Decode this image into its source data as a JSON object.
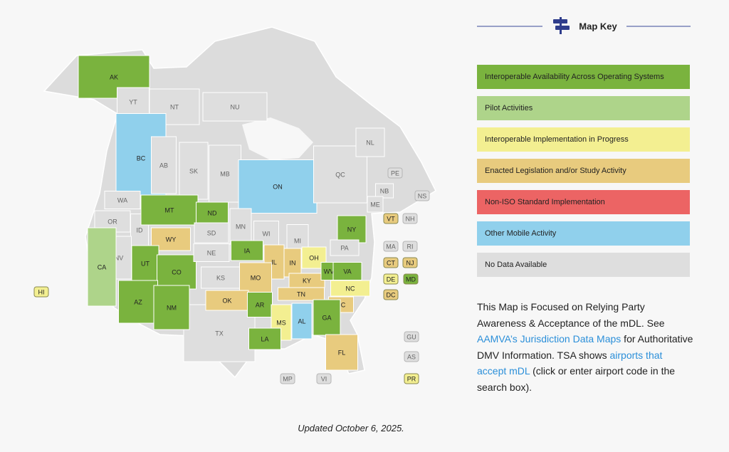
{
  "map_key": {
    "title": "Map Key",
    "items": [
      {
        "label": "Interoperable Availability Across Operating Systems",
        "color": "#7ab33e"
      },
      {
        "label": "Pilot Activities",
        "color": "#aed48a"
      },
      {
        "label": "Interoperable Implementation in Progress",
        "color": "#f3ef91"
      },
      {
        "label": "Enacted Legislation and/or Study Activity",
        "color": "#e8cb7e"
      },
      {
        "label": "Non-ISO Standard Implementation",
        "color": "#ec6464"
      },
      {
        "label": "Other Mobile Activity",
        "color": "#90d0ec"
      },
      {
        "label": "No Data Available",
        "color": "#dedede"
      }
    ]
  },
  "paragraph": [
    "This Map is Focused on Relying Party Awareness & Acceptance of the mDL. See ",
    "AAMVA’s Jurisdiction Data Maps",
    " for Authoritative DMV Information. TSA shows ",
    "airports that accept mDL",
    " (click or enter airport code in the search box)."
  ],
  "footer": "Updated October 6, 2025.",
  "regions": [
    {
      "code": "AK",
      "color": "#7ab33e"
    },
    {
      "code": "YT",
      "color": "#dedede"
    },
    {
      "code": "NT",
      "color": "#dedede"
    },
    {
      "code": "NU",
      "color": "#dedede"
    },
    {
      "code": "BC",
      "color": "#90d0ec"
    },
    {
      "code": "AB",
      "color": "#dedede"
    },
    {
      "code": "SK",
      "color": "#dedede"
    },
    {
      "code": "MB",
      "color": "#dedede"
    },
    {
      "code": "ON",
      "color": "#90d0ec"
    },
    {
      "code": "QC",
      "color": "#dedede"
    },
    {
      "code": "NL",
      "color": "#dedede"
    },
    {
      "code": "PE",
      "color": "#dedede"
    },
    {
      "code": "NS",
      "color": "#dedede"
    },
    {
      "code": "NB",
      "color": "#dedede"
    },
    {
      "code": "ME",
      "color": "#dedede"
    },
    {
      "code": "VT",
      "color": "#e8cb7e"
    },
    {
      "code": "NH",
      "color": "#dedede"
    },
    {
      "code": "WA",
      "color": "#dedede"
    },
    {
      "code": "OR",
      "color": "#dedede"
    },
    {
      "code": "ID",
      "color": "#dedede"
    },
    {
      "code": "MT",
      "color": "#7ab33e"
    },
    {
      "code": "ND",
      "color": "#7ab33e"
    },
    {
      "code": "WY",
      "color": "#e8cb7e"
    },
    {
      "code": "SD",
      "color": "#dedede"
    },
    {
      "code": "MN",
      "color": "#dedede"
    },
    {
      "code": "WI",
      "color": "#dedede"
    },
    {
      "code": "MI",
      "color": "#dedede"
    },
    {
      "code": "NY",
      "color": "#7ab33e"
    },
    {
      "code": "PA",
      "color": "#dedede"
    },
    {
      "code": "MA",
      "color": "#dedede"
    },
    {
      "code": "RI",
      "color": "#dedede"
    },
    {
      "code": "CT",
      "color": "#e8cb7e"
    },
    {
      "code": "NJ",
      "color": "#e8cb7e"
    },
    {
      "code": "DE",
      "color": "#f3ef91"
    },
    {
      "code": "MD",
      "color": "#7ab33e"
    },
    {
      "code": "DC",
      "color": "#e8cb7e"
    },
    {
      "code": "NV",
      "color": "#dedede"
    },
    {
      "code": "UT",
      "color": "#7ab33e"
    },
    {
      "code": "CO",
      "color": "#7ab33e"
    },
    {
      "code": "NE",
      "color": "#dedede"
    },
    {
      "code": "IA",
      "color": "#7ab33e"
    },
    {
      "code": "IL",
      "color": "#e8cb7e"
    },
    {
      "code": "IN",
      "color": "#e8cb7e"
    },
    {
      "code": "OH",
      "color": "#f3ef91"
    },
    {
      "code": "KS",
      "color": "#dedede"
    },
    {
      "code": "MO",
      "color": "#e8cb7e"
    },
    {
      "code": "KY",
      "color": "#e8cb7e"
    },
    {
      "code": "WV",
      "color": "#7ab33e"
    },
    {
      "code": "VA",
      "color": "#7ab33e"
    },
    {
      "code": "CA",
      "color": "#aed48a"
    },
    {
      "code": "TX",
      "color": "#dedede"
    },
    {
      "code": "AZ",
      "color": "#7ab33e"
    },
    {
      "code": "NM",
      "color": "#7ab33e"
    },
    {
      "code": "OK",
      "color": "#e8cb7e"
    },
    {
      "code": "AR",
      "color": "#7ab33e"
    },
    {
      "code": "TN",
      "color": "#e8cb7e"
    },
    {
      "code": "NC",
      "color": "#f3ef91"
    },
    {
      "code": "SC",
      "color": "#e8cb7e"
    },
    {
      "code": "MS",
      "color": "#f3ef91"
    },
    {
      "code": "AL",
      "color": "#90d0ec"
    },
    {
      "code": "GA",
      "color": "#7ab33e"
    },
    {
      "code": "LA",
      "color": "#7ab33e"
    },
    {
      "code": "FL",
      "color": "#e8cb7e"
    },
    {
      "code": "HI",
      "color": "#f3ef91"
    },
    {
      "code": "GU",
      "color": "#dedede"
    },
    {
      "code": "AS",
      "color": "#dedede"
    },
    {
      "code": "MP",
      "color": "#dedede"
    },
    {
      "code": "VI",
      "color": "#dedede"
    },
    {
      "code": "PR",
      "color": "#f3ef91"
    }
  ]
}
